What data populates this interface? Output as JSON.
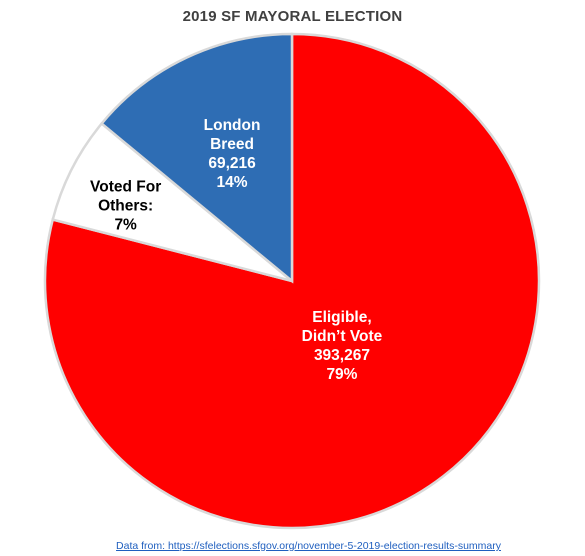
{
  "chart_data": {
    "type": "pie",
    "title": "2019 SF MAYORAL ELECTION",
    "slices": [
      {
        "key": "breed",
        "percent": 14,
        "color": "#2e6db4",
        "label_color": "#ffffff",
        "label_lines": [
          "London",
          "Breed",
          "69,216",
          "14%"
        ]
      },
      {
        "key": "eligible",
        "percent": 79,
        "color": "#ff0000",
        "label_color": "#ffffff",
        "label_lines": [
          "Eligible,",
          "Didn’t Vote",
          "393,267",
          "79%"
        ]
      },
      {
        "key": "others",
        "percent": 7,
        "color": "#ffffff",
        "label_color": "#000000",
        "label_lines": [
          "Voted For",
          "Others:",
          "7%"
        ]
      }
    ],
    "start": "12 o'clock",
    "direction": "clockwise",
    "legend": "none"
  },
  "source_note": "Data from: https://sfelections.sfgov.org/november-5-2019-election-results-summary"
}
